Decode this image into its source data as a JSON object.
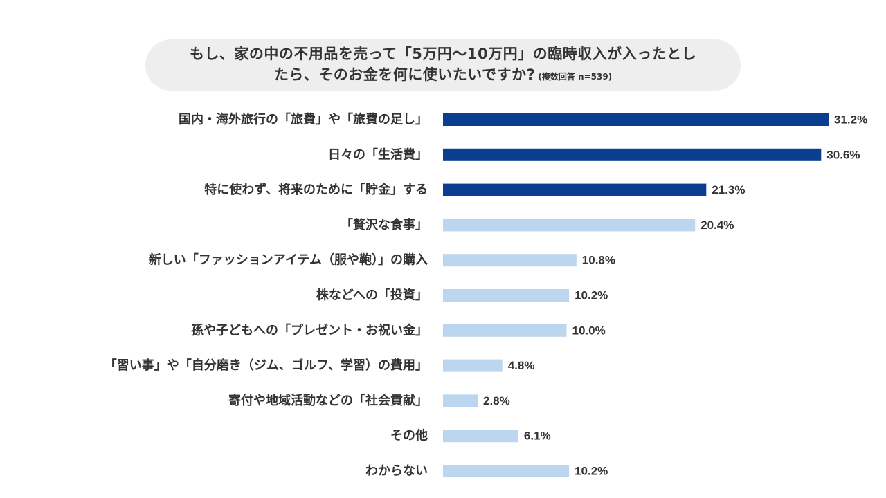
{
  "chart_data": {
    "type": "bar",
    "orientation": "horizontal",
    "title_line1": "もし、家の中の不用品を売って「5万円～10万円」の臨時収入が入ったとし",
    "title_line2": "たら、そのお金を何に使いたいですか?",
    "title_note": "(複数回答 n=539)",
    "categories": [
      "国内・海外旅行の「旅費」や「旅費の足し」",
      "日々の「生活費」",
      "特に使わず、将来のために「貯金」する",
      "「贅沢な食事」",
      "新しい「ファッションアイテム（服や鞄）」の購入",
      "株などへの「投資」",
      "孫や子どもへの「プレゼント・お祝い金」",
      "「習い事」や「自分磨き（ジム、ゴルフ、学習）の費用」",
      "寄付や地域活動などの「社会貢献」",
      "その他",
      "わからない"
    ],
    "values": [
      31.2,
      30.6,
      21.3,
      20.4,
      10.8,
      10.2,
      10.0,
      4.8,
      2.8,
      6.1,
      10.2
    ],
    "value_labels": [
      "31.2%",
      "30.6%",
      "21.3%",
      "20.4%",
      "10.8%",
      "10.2%",
      "10.0%",
      "4.8%",
      "2.8%",
      "6.1%",
      "10.2%"
    ],
    "highlight_top": 3,
    "colors": {
      "highlight": "#0b3d91",
      "normal": "#bcd6ef"
    },
    "xlim": [
      0,
      31.2
    ],
    "grid": false,
    "legend": "none"
  }
}
